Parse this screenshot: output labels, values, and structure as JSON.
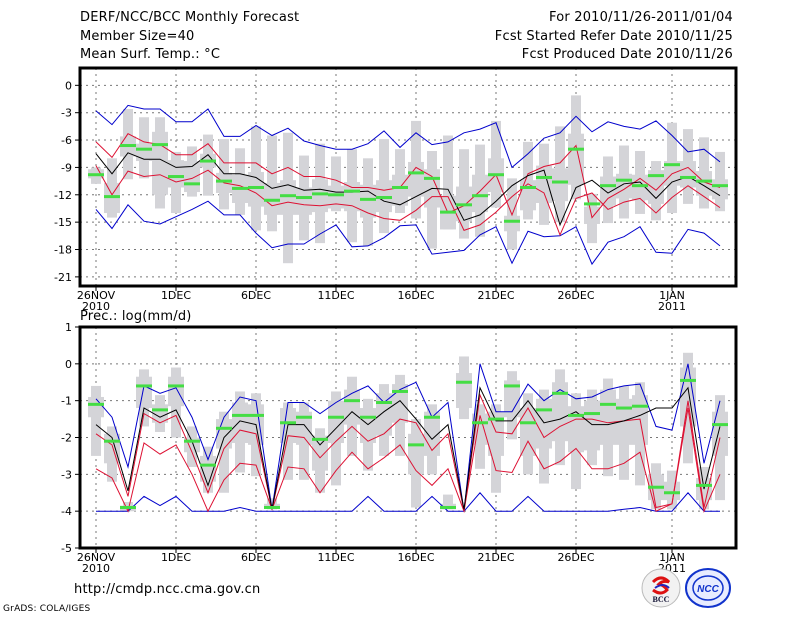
{
  "header": {
    "title": "DERF/NCC/BCC Monthly Forecast",
    "member_size": "Member Size=40",
    "variable": "Mean Surf. Temp.: °C",
    "period": "For 2010/11/26-2011/01/04",
    "started": "Fcst Started Refer Date 2010/11/25",
    "produced": "Fcst Produced Date 2010/11/26"
  },
  "footer": {
    "url": "http://cmdp.ncc.cma.gov.cn",
    "grads": "GrADS: COLA/IGES",
    "logo_bcc": "BCC",
    "logo_ncc": "NCC"
  },
  "colors": {
    "mean": "#000000",
    "spread": "#dd1133",
    "extreme": "#0000cc",
    "median": "#44dd44",
    "box": "#d4d4d8"
  },
  "chart_data": [
    {
      "type": "line",
      "title": "Mean Surf. Temp.: °C",
      "xlabel": "",
      "ylabel": "",
      "ylim": [
        -22,
        2
      ],
      "yticks": [
        0,
        -3,
        -6,
        -9,
        -12,
        -15,
        -18,
        -21
      ],
      "xtick_labels": [
        {
          "day": 0,
          "label": "26NOV",
          "sub": "2010"
        },
        {
          "day": 5,
          "label": "1DEC",
          "sub": ""
        },
        {
          "day": 10,
          "label": "6DEC",
          "sub": ""
        },
        {
          "day": 15,
          "label": "11DEC",
          "sub": ""
        },
        {
          "day": 20,
          "label": "16DEC",
          "sub": ""
        },
        {
          "day": 25,
          "label": "21DEC",
          "sub": ""
        },
        {
          "day": 30,
          "label": "26DEC",
          "sub": ""
        },
        {
          "day": 36,
          "label": "1JAN",
          "sub": "2011"
        }
      ],
      "grid": true,
      "n_days": 40,
      "series": [
        {
          "name": "max",
          "color": "extreme",
          "values": [
            -2.8,
            -4.3,
            -2.2,
            -2.6,
            -2.6,
            -4,
            -4,
            -2.6,
            -5.6,
            -5.6,
            -4.4,
            -5.5,
            -4.7,
            -6.1,
            -6.6,
            -7,
            -7,
            -6.4,
            -5,
            -6.8,
            -5.2,
            -6.5,
            -6.2,
            -5.2,
            -4.8,
            -4.1,
            -9,
            -7.5,
            -5.8,
            -5.2,
            -3.4,
            -5.1,
            -4,
            -4.5,
            -4.8,
            -3.9,
            -5.5,
            -7.3,
            -7,
            -8.4
          ]
        },
        {
          "name": "upper",
          "color": "spread",
          "values": [
            -6.2,
            -7.9,
            -5.3,
            -6.2,
            -6.5,
            -7.6,
            -7.6,
            -6.4,
            -8.5,
            -8.5,
            -8.5,
            -9.7,
            -9,
            -10,
            -10,
            -10.4,
            -11.2,
            -11.2,
            -11.5,
            -11.2,
            -9,
            -10,
            -14,
            -13.2,
            -11.6,
            -9.8,
            -14.2,
            -9.7,
            -8.9,
            -8.5,
            -6.6,
            -14.5,
            -12.4,
            -11.4,
            -10.2,
            -11.5,
            -9.7,
            -9,
            -10.6,
            -11.2
          ]
        },
        {
          "name": "mean",
          "color": "mean",
          "values": [
            -7.5,
            -9.7,
            -7.4,
            -8.1,
            -8.1,
            -9,
            -8.9,
            -7.6,
            -9.7,
            -9.7,
            -10.1,
            -11.3,
            -10.9,
            -11.5,
            -11.4,
            -11.7,
            -11.7,
            -11.6,
            -12.7,
            -13.1,
            -12.2,
            -11.3,
            -11.4,
            -14.8,
            -14.2,
            -12.7,
            -11,
            -9.9,
            -9.3,
            -15.3,
            -11.2,
            -10.4,
            -11.8,
            -10.8,
            -10.6,
            -12.4,
            -10.6,
            -10,
            -11,
            -12.1
          ]
        },
        {
          "name": "lower",
          "color": "spread",
          "values": [
            -8.8,
            -12,
            -9.4,
            -10,
            -9.8,
            -10.6,
            -10.2,
            -9.3,
            -10.7,
            -11,
            -11.8,
            -13.2,
            -12.8,
            -13.1,
            -13.2,
            -13,
            -13.2,
            -14,
            -14.6,
            -14.8,
            -13.7,
            -12.2,
            -12.2,
            -15.9,
            -15.3,
            -13.9,
            -12.2,
            -10.8,
            -11.8,
            -16.4,
            -12.4,
            -11.8,
            -13.6,
            -12.8,
            -12.4,
            -14,
            -12.3,
            -11,
            -12.2,
            -13.4
          ]
        },
        {
          "name": "min",
          "color": "extreme",
          "values": [
            -13.6,
            -15.7,
            -13.1,
            -14.9,
            -15.2,
            -14.4,
            -13.6,
            -12.7,
            -14.2,
            -14.2,
            -16.2,
            -17.8,
            -17.4,
            -17.4,
            -16.3,
            -15.3,
            -17.7,
            -17.6,
            -16.7,
            -15.4,
            -15.3,
            -18.5,
            -18.3,
            -18.1,
            -16.4,
            -15.5,
            -19.5,
            -16,
            -16.6,
            -16.5,
            -15.5,
            -19.6,
            -17.2,
            -16.6,
            -15.5,
            -18.3,
            -18.4,
            -15.8,
            -16.2,
            -17.6
          ]
        },
        {
          "name": "median",
          "color": "median",
          "values": [
            -9.8,
            -12.2,
            -6.6,
            -7,
            -6.5,
            -10,
            -10.8,
            -8.3,
            -10.5,
            -11.3,
            -11.2,
            -12.6,
            -12.1,
            -12.3,
            -11.9,
            -12,
            -11.6,
            -12.5,
            -12.3,
            -11.2,
            -9.6,
            -10.2,
            -13.9,
            -13.1,
            -12.1,
            -9.8,
            -14.9,
            -11.2,
            -10.1,
            -10.6,
            -7,
            -13,
            -11,
            -10.4,
            -11,
            -9.9,
            -8.7,
            -10.1,
            -10.5,
            -11
          ]
        },
        {
          "name": "p10",
          "color": "box",
          "values": [
            -10.8,
            -14.5,
            -10.3,
            -10.2,
            -13.5,
            -14,
            -12.2,
            -12.1,
            -13.6,
            -14.2,
            -15.9,
            -16,
            -19.5,
            -17,
            -17.3,
            -13.8,
            -17.2,
            -17.6,
            -16.2,
            -14,
            -14.6,
            -17.9,
            -15.8,
            -16.8,
            -16.6,
            -13.4,
            -18,
            -14.7,
            -15.3,
            -15,
            -12.5,
            -17.3,
            -15.1,
            -14.6,
            -14.1,
            -14.8,
            -14,
            -13,
            -13.5,
            -13.8
          ]
        },
        {
          "name": "p90",
          "color": "box",
          "values": [
            -9,
            -8,
            -2.6,
            -3.5,
            -3.5,
            -7.3,
            -6.7,
            -5.4,
            -5.9,
            -6.9,
            -4.5,
            -5.5,
            -5.2,
            -7.7,
            -6.4,
            -7.8,
            -7,
            -8,
            -5.9,
            -7,
            -3.9,
            -7.2,
            -5.5,
            -7,
            -6.5,
            -3.9,
            -10.2,
            -6.2,
            -6.4,
            -4.5,
            -1.1,
            -11.9,
            -7.8,
            -6.6,
            -7.2,
            -8.3,
            -4.1,
            -4.8,
            -5.7,
            -7.3
          ]
        },
        {
          "name": "p25",
          "color": "box",
          "values": [
            -10.2,
            -14,
            -7.8,
            -8.3,
            -12,
            -11.2,
            -11.7,
            -9,
            -11.8,
            -12.9,
            -13.3,
            -14.2,
            -14.2,
            -14.2,
            -13.9,
            -13.5,
            -13.8,
            -14.5,
            -13.9,
            -13.2,
            -12.2,
            -13.4,
            -15.8,
            -14.9,
            -13.9,
            -11.7,
            -16,
            -13.7,
            -12.9,
            -12.7,
            -10.9,
            -15.2,
            -13.2,
            -12.4,
            -12.6,
            -13,
            -11,
            -11.2,
            -12.1,
            -12.5
          ]
        },
        {
          "name": "p75",
          "color": "box",
          "values": [
            -9.2,
            -10.7,
            -5.6,
            -6.4,
            -5.1,
            -8.2,
            -8.3,
            -7.5,
            -9.6,
            -9.8,
            -9.5,
            -10.7,
            -10.4,
            -11.2,
            -10.3,
            -11,
            -10.6,
            -10.9,
            -10.4,
            -9.8,
            -8.4,
            -9.2,
            -12.1,
            -11.1,
            -9.8,
            -8,
            -14.3,
            -10.4,
            -8.8,
            -9.1,
            -5.3,
            -13.3,
            -10,
            -9.7,
            -9.8,
            -9.3,
            -8.3,
            -8.3,
            -9.4,
            -10.3
          ]
        }
      ]
    },
    {
      "type": "line",
      "title": "Prec.: log(mm/d)",
      "xlabel": "",
      "ylabel": "",
      "ylim": [
        -5,
        1
      ],
      "yticks": [
        1,
        0,
        -1,
        -2,
        -3,
        -4,
        -5
      ],
      "xtick_labels": [
        {
          "day": 0,
          "label": "26NOV",
          "sub": "2010"
        },
        {
          "day": 5,
          "label": "1DEC",
          "sub": ""
        },
        {
          "day": 10,
          "label": "6DEC",
          "sub": ""
        },
        {
          "day": 15,
          "label": "11DEC",
          "sub": ""
        },
        {
          "day": 20,
          "label": "16DEC",
          "sub": ""
        },
        {
          "day": 25,
          "label": "21DEC",
          "sub": ""
        },
        {
          "day": 30,
          "label": "26DEC",
          "sub": ""
        },
        {
          "day": 36,
          "label": "1JAN",
          "sub": "2011"
        }
      ],
      "grid": true,
      "n_days": 40,
      "series": [
        {
          "name": "max",
          "color": "extreme",
          "values": [
            -0.95,
            -1.45,
            -2.8,
            -0.6,
            -0.8,
            -0.65,
            -1.45,
            -2.6,
            -1.45,
            -0.9,
            -1,
            -3.95,
            -1.05,
            -1.05,
            -1.35,
            -1.05,
            -0.8,
            -0.6,
            -1.05,
            -0.7,
            -0.5,
            -1.45,
            -1.05,
            -4,
            0.0,
            -1.3,
            -1.3,
            -0.55,
            -1.0,
            -0.7,
            -0.95,
            -0.9,
            -0.7,
            -0.6,
            -0.55,
            -1.7,
            -1.8,
            0.0,
            -2.7,
            -1.0
          ]
        },
        {
          "name": "upper",
          "color": "spread",
          "values": [
            -1.9,
            -2.2,
            -3.6,
            -1.35,
            -1.6,
            -1.4,
            -2.4,
            -3.5,
            -2.3,
            -1.8,
            -1.9,
            -3.95,
            -1.95,
            -2.0,
            -2.55,
            -2.1,
            -1.7,
            -2.1,
            -1.9,
            -1.5,
            -1.6,
            -2.35,
            -1.9,
            -4,
            -0.85,
            -1.85,
            -1.9,
            -1.2,
            -2.0,
            -1.7,
            -1.5,
            -1.5,
            -1.6,
            -1.55,
            -1.5,
            -3.9,
            -3.8,
            -1.0,
            -3.9,
            -2.0
          ]
        },
        {
          "name": "mean",
          "color": "mean",
          "values": [
            -1.65,
            -2.0,
            -3.45,
            -1.2,
            -1.45,
            -1.25,
            -2.1,
            -3.3,
            -2.0,
            -1.55,
            -1.65,
            -3.95,
            -1.65,
            -1.65,
            -2.2,
            -1.75,
            -1.3,
            -1.65,
            -1.3,
            -1.0,
            -1.5,
            -2.05,
            -1.65,
            -3.95,
            -0.65,
            -1.55,
            -1.55,
            -1.0,
            -1.6,
            -1.5,
            -1.3,
            -1.65,
            -1.65,
            -1.55,
            -1.4,
            -1.2,
            -1.2,
            -0.65,
            -3.4,
            -1.7
          ]
        },
        {
          "name": "lower",
          "color": "spread",
          "values": [
            -2.85,
            -3.1,
            -4,
            -2.15,
            -2.45,
            -2.2,
            -3.0,
            -4,
            -3.15,
            -2.7,
            -2.75,
            -3.95,
            -2.8,
            -2.85,
            -3.5,
            -2.9,
            -2.4,
            -2.85,
            -2.55,
            -2.2,
            -2.9,
            -3.3,
            -2.85,
            -4,
            -1.4,
            -2.9,
            -2.95,
            -2.1,
            -2.85,
            -2.65,
            -2.3,
            -2.85,
            -2.85,
            -2.7,
            -2.4,
            -4,
            -3.8,
            -1.2,
            -4,
            -3.0
          ]
        },
        {
          "name": "min",
          "color": "extreme",
          "values": [
            -4,
            -4,
            -4,
            -3.6,
            -3.85,
            -3.6,
            -4,
            -4,
            -4,
            -3.9,
            -4,
            -4,
            -4,
            -4,
            -4,
            -4,
            -4,
            -3.6,
            -4,
            -4,
            -4,
            -3.6,
            -4,
            -4,
            -3.5,
            -4,
            -4,
            -3.6,
            -4,
            -4,
            -4,
            -4,
            -4,
            -3.95,
            -3.9,
            -4,
            -4,
            -3.5,
            -4,
            -4
          ]
        },
        {
          "name": "median",
          "color": "median",
          "values": [
            -1.1,
            -2.1,
            -3.9,
            -0.6,
            -1.25,
            -0.6,
            -2.1,
            -2.75,
            -1.75,
            -1.4,
            -1.4,
            -3.9,
            -1.6,
            -1.45,
            -2.05,
            -1.45,
            -1.0,
            -1.45,
            -1.05,
            -0.75,
            -2.2,
            -1.45,
            -3.9,
            -0.5,
            -1.6,
            -1.5,
            -0.6,
            -1.6,
            -1.25,
            -0.8,
            -1.4,
            -1.35,
            -1.1,
            -1.2,
            -1.15,
            -3.35,
            -3.5,
            -0.45,
            -3.3,
            -1.65
          ]
        },
        {
          "name": "p10",
          "color": "box",
          "values": [
            -2.5,
            -3.2,
            -4,
            -1.7,
            -1.85,
            -2.0,
            -2.8,
            -3.5,
            -3.5,
            -2.95,
            -3.05,
            -3.95,
            -3.15,
            -3.15,
            -3.5,
            -3.3,
            -2.5,
            -2.9,
            -2.5,
            -2.5,
            -3.9,
            -3.0,
            -3.95,
            -1.5,
            -2.85,
            -3.5,
            -2.05,
            -3.0,
            -3.25,
            -2.75,
            -3.4,
            -2.75,
            -3.05,
            -3.15,
            -3.3,
            -3.95,
            -3.95,
            -2.7,
            -3.95,
            -3.7
          ]
        },
        {
          "name": "p90",
          "color": "box",
          "values": [
            -0.6,
            -1.7,
            -3.75,
            -0.15,
            -0.85,
            -0.1,
            -1.7,
            -2.25,
            -1.3,
            -0.75,
            -0.8,
            -3.65,
            -1.05,
            -1.05,
            -1.75,
            -0.75,
            -0.35,
            -0.95,
            -0.55,
            -0.3,
            -1.5,
            -1.1,
            -3.55,
            0.2,
            -1.1,
            -1.1,
            -0.2,
            -0.8,
            -0.7,
            -0.15,
            -0.8,
            -0.7,
            -0.4,
            -0.6,
            -0.5,
            -2.7,
            -2.9,
            0.3,
            -2.8,
            -0.85
          ]
        },
        {
          "name": "p25",
          "color": "box",
          "values": [
            -1.45,
            -2.7,
            -4,
            -1.2,
            -1.6,
            -1.15,
            -2.4,
            -3.2,
            -2.3,
            -2.15,
            -2.2,
            -3.9,
            -2.15,
            -2.2,
            -2.9,
            -2.15,
            -1.65,
            -2.15,
            -1.95,
            -1.6,
            -3.0,
            -2.5,
            -3.95,
            -1.2,
            -2.2,
            -2.5,
            -1.45,
            -2.5,
            -2.3,
            -2.1,
            -2.4,
            -2.35,
            -2.2,
            -2.2,
            -2.2,
            -3.7,
            -3.7,
            -1.7,
            -3.7,
            -2.5
          ]
        },
        {
          "name": "p75",
          "color": "box",
          "values": [
            -0.9,
            -1.9,
            -3.85,
            -0.35,
            -1.1,
            -0.35,
            -2.0,
            -2.5,
            -1.5,
            -1.05,
            -1.1,
            -3.8,
            -1.2,
            -1.3,
            -1.95,
            -1.0,
            -0.7,
            -1.2,
            -0.8,
            -0.55,
            -1.9,
            -1.3,
            -3.8,
            -0.25,
            -1.35,
            -1.3,
            -0.45,
            -1.2,
            -0.95,
            -0.5,
            -1.15,
            -1.0,
            -0.7,
            -0.95,
            -0.85,
            -3.0,
            -3.2,
            -0.1,
            -3.1,
            -1.3
          ]
        }
      ]
    }
  ]
}
